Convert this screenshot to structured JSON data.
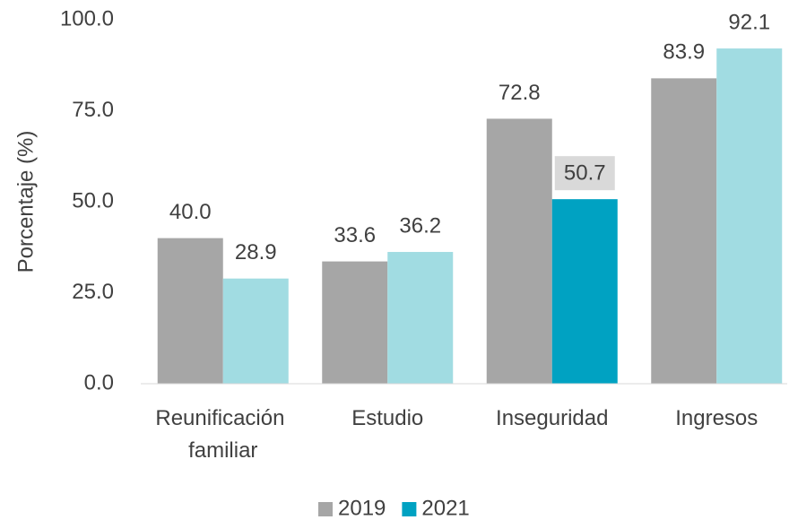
{
  "chart_data": {
    "type": "bar",
    "y_label": "Porcentaje (%)",
    "categories": [
      "Reunificación familiar",
      "Estudio",
      "Inseguridad",
      "Ingresos"
    ],
    "series": [
      {
        "name": "2019",
        "color": "#a6a6a6",
        "values": [
          40.0,
          33.6,
          72.8,
          83.9
        ],
        "value_labels": [
          "40.0",
          "33.6",
          "72.8",
          "83.9"
        ]
      },
      {
        "name": "2021",
        "color": "#00a2c2",
        "colors": [
          "#a1dce2",
          "#a1dce2",
          "#00a2c2",
          "#a1dce2"
        ],
        "label_backgrounds": [
          null,
          null,
          "#d9d9d9",
          null
        ],
        "values": [
          28.9,
          36.2,
          50.7,
          92.1
        ],
        "value_labels": [
          "28.9",
          "36.2",
          "50.7",
          "92.1"
        ]
      }
    ],
    "ylim": [
      0,
      100
    ],
    "yticks": [
      {
        "value": 0,
        "label": "0.0"
      },
      {
        "value": 25,
        "label": "25.0"
      },
      {
        "value": 50,
        "label": "50.0"
      },
      {
        "value": 75,
        "label": "75.0"
      },
      {
        "value": 100,
        "label": "100.0"
      }
    ],
    "grid": false,
    "legend": "bottom"
  }
}
